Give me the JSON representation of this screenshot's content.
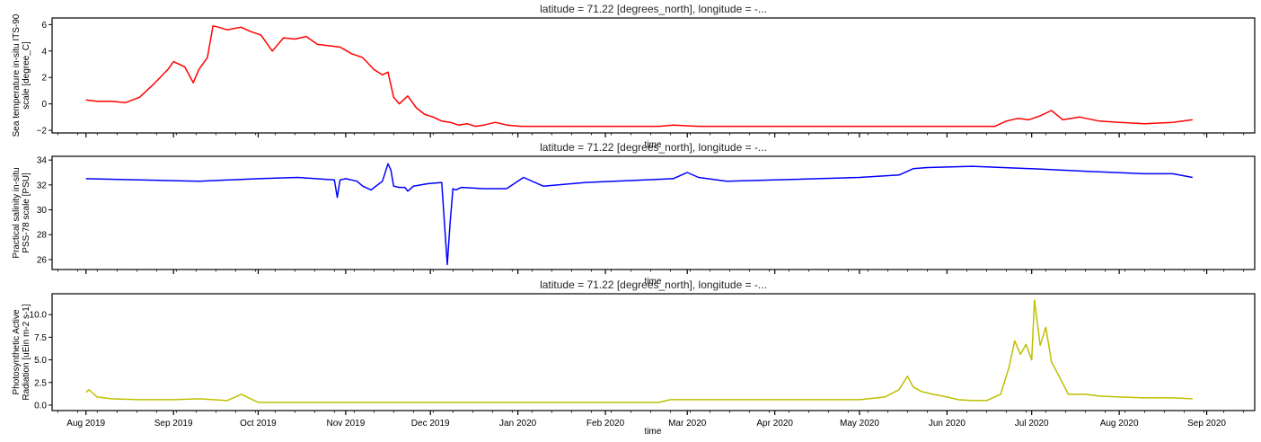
{
  "figure": {
    "x_tick_labels": [
      "Aug 2019",
      "Sep 2019",
      "Oct 2019",
      "Nov 2019",
      "Dec 2019",
      "Jan 2020",
      "Feb 2020",
      "Mar 2020",
      "Apr 2020",
      "May 2020",
      "Jun 2020",
      "Jul 2020",
      "Aug 2020",
      "Sep 2020"
    ]
  },
  "chart_data": [
    {
      "type": "line",
      "title": "latitude = 71.22 [degrees_north], longitude = -...",
      "xlabel": "time",
      "ylabel": [
        "Sea temperature in-situ ITS-90",
        "scale [degree_C]"
      ],
      "color": "#ff0000",
      "xlim": [
        "2019-07-20",
        "2020-09-18"
      ],
      "ylim": [
        -2.2,
        6.5
      ],
      "yticks": [
        -2,
        0,
        2,
        4,
        6
      ],
      "ytick_labels": [
        "−2",
        "0",
        "2",
        "4",
        "6"
      ],
      "series": [
        {
          "x": [
            "2019-08-01",
            "2019-08-05",
            "2019-08-10",
            "2019-08-15",
            "2019-08-20",
            "2019-08-25",
            "2019-08-30",
            "2019-09-01",
            "2019-09-05",
            "2019-09-08",
            "2019-09-10",
            "2019-09-13",
            "2019-09-15",
            "2019-09-17",
            "2019-09-20",
            "2019-09-25",
            "2019-09-28",
            "2019-10-02",
            "2019-10-06",
            "2019-10-10",
            "2019-10-14",
            "2019-10-18",
            "2019-10-22",
            "2019-10-26",
            "2019-10-30",
            "2019-11-03",
            "2019-11-07",
            "2019-11-11",
            "2019-11-14",
            "2019-11-16",
            "2019-11-18",
            "2019-11-20",
            "2019-11-23",
            "2019-11-26",
            "2019-11-29",
            "2019-12-02",
            "2019-12-05",
            "2019-12-08",
            "2019-12-11",
            "2019-12-14",
            "2019-12-17",
            "2019-12-20",
            "2019-12-24",
            "2019-12-28",
            "2020-01-02",
            "2020-01-15",
            "2020-02-01",
            "2020-02-20",
            "2020-02-25",
            "2020-03-05",
            "2020-04-01",
            "2020-05-01",
            "2020-05-20",
            "2020-06-10",
            "2020-06-18",
            "2020-06-22",
            "2020-06-26",
            "2020-06-30",
            "2020-07-04",
            "2020-07-08",
            "2020-07-12",
            "2020-07-18",
            "2020-07-25",
            "2020-08-01",
            "2020-08-10",
            "2020-08-20",
            "2020-08-27"
          ],
          "y": [
            0.3,
            0.2,
            0.2,
            0.1,
            0.5,
            1.5,
            2.6,
            3.2,
            2.8,
            1.6,
            2.6,
            3.5,
            5.9,
            5.8,
            5.6,
            5.8,
            5.5,
            5.2,
            4.0,
            5.0,
            4.9,
            5.1,
            4.5,
            4.4,
            4.3,
            3.8,
            3.5,
            2.6,
            2.2,
            2.4,
            0.5,
            0.0,
            0.6,
            -0.3,
            -0.8,
            -1.0,
            -1.3,
            -1.4,
            -1.6,
            -1.5,
            -1.7,
            -1.6,
            -1.4,
            -1.6,
            -1.7,
            -1.7,
            -1.7,
            -1.7,
            -1.6,
            -1.7,
            -1.7,
            -1.7,
            -1.7,
            -1.7,
            -1.7,
            -1.3,
            -1.1,
            -1.2,
            -0.9,
            -0.5,
            -1.2,
            -1.0,
            -1.3,
            -1.4,
            -1.5,
            -1.4,
            -1.2
          ]
        }
      ]
    },
    {
      "type": "line",
      "title": "latitude = 71.22 [degrees_north], longitude = -...",
      "xlabel": "time",
      "ylabel": [
        "Practical salinity in-situ",
        "PSS-78 scale [PSU]"
      ],
      "color": "#0000ff",
      "xlim": [
        "2019-07-20",
        "2020-09-18"
      ],
      "ylim": [
        25.2,
        34.3
      ],
      "yticks": [
        26,
        28,
        30,
        32,
        34
      ],
      "ytick_labels": [
        "26",
        "28",
        "30",
        "32",
        "34"
      ],
      "series": [
        {
          "x": [
            "2019-08-01",
            "2019-08-20",
            "2019-09-10",
            "2019-10-01",
            "2019-10-15",
            "2019-10-28",
            "2019-10-29",
            "2019-10-30",
            "2019-11-01",
            "2019-11-05",
            "2019-11-07",
            "2019-11-10",
            "2019-11-14",
            "2019-11-16",
            "2019-11-17",
            "2019-11-18",
            "2019-11-20",
            "2019-11-22",
            "2019-11-23",
            "2019-11-25",
            "2019-11-30",
            "2019-12-05",
            "2019-12-07",
            "2019-12-08",
            "2019-12-09",
            "2019-12-10",
            "2019-12-12",
            "2019-12-20",
            "2019-12-28",
            "2020-01-03",
            "2020-01-10",
            "2020-01-25",
            "2020-02-15",
            "2020-02-25",
            "2020-03-01",
            "2020-03-05",
            "2020-03-15",
            "2020-04-01",
            "2020-05-01",
            "2020-05-15",
            "2020-05-20",
            "2020-05-25",
            "2020-06-10",
            "2020-07-01",
            "2020-07-20",
            "2020-08-10",
            "2020-08-20",
            "2020-08-27"
          ],
          "y": [
            32.5,
            32.4,
            32.3,
            32.5,
            32.6,
            32.4,
            31.0,
            32.4,
            32.5,
            32.3,
            31.9,
            31.6,
            32.3,
            33.7,
            33.2,
            31.9,
            31.8,
            31.8,
            31.5,
            31.9,
            32.1,
            32.2,
            25.6,
            29.0,
            31.7,
            31.6,
            31.8,
            31.7,
            31.7,
            32.6,
            31.9,
            32.2,
            32.4,
            32.5,
            33.0,
            32.6,
            32.3,
            32.4,
            32.6,
            32.8,
            33.3,
            33.4,
            33.5,
            33.3,
            33.1,
            32.9,
            32.9,
            32.6
          ]
        }
      ]
    },
    {
      "type": "line",
      "title": "latitude = 71.22 [degrees_north], longitude = -...",
      "xlabel": "time",
      "ylabel": [
        "Photosynthetic Active",
        "Radiation [uEin m-2 s-1]"
      ],
      "color": "#bfbf00",
      "xlim": [
        "2019-07-20",
        "2020-09-18"
      ],
      "ylim": [
        -0.6,
        12.3
      ],
      "yticks": [
        0,
        2.5,
        5,
        7.5,
        10
      ],
      "ytick_labels": [
        "0.0",
        "2.5",
        "5.0",
        "7.5",
        "10.0"
      ],
      "series": [
        {
          "x": [
            "2019-08-01",
            "2019-08-02",
            "2019-08-05",
            "2019-08-10",
            "2019-08-20",
            "2019-09-01",
            "2019-09-10",
            "2019-09-15",
            "2019-09-20",
            "2019-09-25",
            "2019-10-01",
            "2019-10-10",
            "2019-10-20",
            "2019-11-01",
            "2020-02-20",
            "2020-02-24",
            "2020-05-01",
            "2020-05-10",
            "2020-05-15",
            "2020-05-18",
            "2020-05-20",
            "2020-05-23",
            "2020-05-27",
            "2020-06-01",
            "2020-06-05",
            "2020-06-10",
            "2020-06-15",
            "2020-06-20",
            "2020-06-23",
            "2020-06-25",
            "2020-06-27",
            "2020-06-29",
            "2020-07-01",
            "2020-07-02",
            "2020-07-04",
            "2020-07-06",
            "2020-07-08",
            "2020-07-10",
            "2020-07-12",
            "2020-07-14",
            "2020-07-20",
            "2020-07-25",
            "2020-08-01",
            "2020-08-10",
            "2020-08-20",
            "2020-08-27"
          ],
          "y": [
            1.4,
            1.7,
            0.9,
            0.7,
            0.6,
            0.6,
            0.7,
            0.6,
            0.5,
            1.2,
            0.3,
            0.3,
            0.3,
            0.3,
            0.3,
            0.6,
            0.6,
            0.9,
            1.7,
            3.2,
            2.0,
            1.5,
            1.2,
            0.9,
            0.6,
            0.5,
            0.5,
            1.2,
            4.2,
            7.1,
            5.6,
            6.7,
            5.0,
            11.6,
            6.6,
            8.6,
            4.8,
            3.6,
            2.4,
            1.2,
            1.2,
            1.0,
            0.9,
            0.8,
            0.8,
            0.7
          ]
        }
      ]
    }
  ]
}
